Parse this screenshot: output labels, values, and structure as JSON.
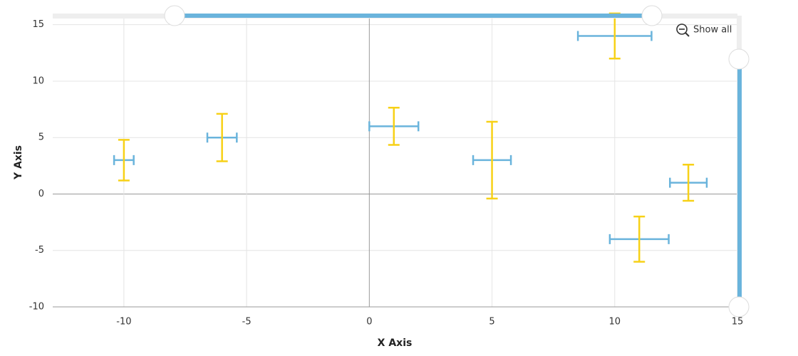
{
  "chart_data": {
    "type": "errorbar",
    "x_label": "X Axis",
    "y_label": "Y Axis",
    "reset_button": "Show all",
    "x": [
      -10,
      -6,
      1,
      5,
      10,
      11,
      13
    ],
    "values": [
      3,
      5,
      6,
      3,
      14,
      -4,
      1
    ],
    "xerr": [
      0.4,
      0.6,
      1,
      0.77,
      1.5,
      1.2,
      0.75
    ],
    "yerr": [
      1.8,
      2.1,
      1.65,
      3.4,
      2,
      2,
      1.6
    ],
    "xerr_color": "#6ab4dc",
    "yerr_color": "#f7d117",
    "xlim": [
      -12.9,
      15
    ],
    "ylim": [
      -10,
      15.8
    ],
    "xticks": [
      -10,
      -5,
      0,
      5,
      10,
      15
    ],
    "yticks": [
      -10,
      -5,
      0,
      5,
      10,
      15
    ],
    "grid": true
  }
}
